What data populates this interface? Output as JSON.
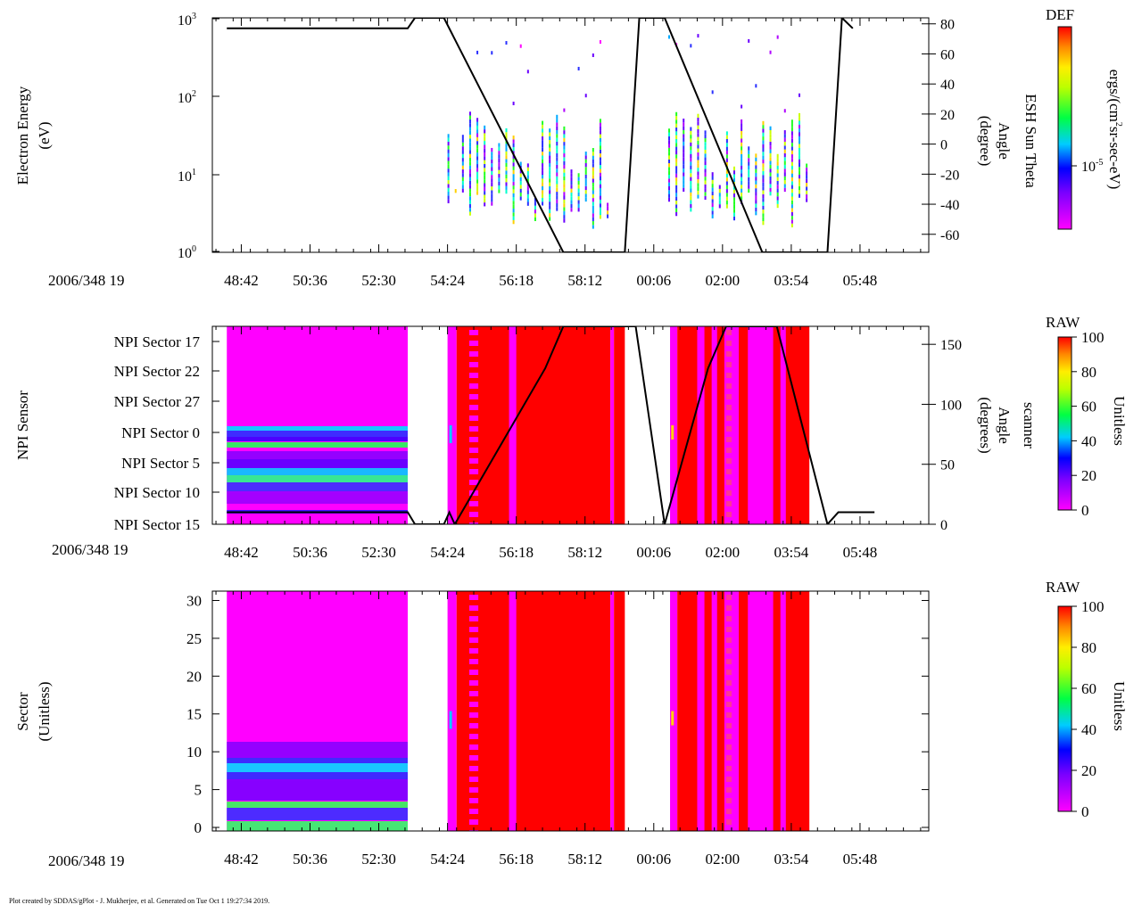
{
  "footer": "Plot created by SDDAS/gPlot - J. Mukherjee, et al.  Generated on Tue Oct 1 19:27:34 2019.",
  "time_ticks": [
    "48:42",
    "50:36",
    "52:30",
    "54:24",
    "56:18",
    "58:12",
    "00:06",
    "02:00",
    "03:54",
    "05:48"
  ],
  "date_label": "2006/348 19",
  "colors": {
    "low": "#ff00ff",
    "high": "#ff0000",
    "fill_bg": "#ffffff",
    "axis": "#000000"
  },
  "chart_data": [
    {
      "type": "heatmap",
      "title": "Electron Energy",
      "ylabel_lines": [
        "Electron Energy",
        "(eV)"
      ],
      "yscale": "log",
      "ylim": [
        1,
        1000
      ],
      "y_ticks": [
        {
          "base": "10",
          "exp": "0"
        },
        {
          "base": "10",
          "exp": "1"
        },
        {
          "base": "10",
          "exp": "2"
        },
        {
          "base": "10",
          "exp": "3"
        }
      ],
      "right_axis": {
        "label_lines": [
          "ESH Sun Theta",
          "Angle",
          "(degree)"
        ],
        "ticks": [
          "80",
          "60",
          "40",
          "20",
          "0",
          "-20",
          "-40",
          "-60"
        ],
        "ylim": [
          -72,
          84
        ],
        "line_name": "ESH Sun Theta",
        "line_points": [
          [
            48.3,
            77
          ],
          [
            53.3,
            77
          ],
          [
            53.5,
            84
          ],
          [
            54.3,
            84
          ],
          [
            57.6,
            -72
          ],
          [
            59.3,
            -72
          ],
          [
            59.7,
            84
          ],
          [
            60.4,
            84
          ],
          [
            63.1,
            -72
          ],
          [
            64.9,
            -72
          ],
          [
            65.3,
            84
          ],
          [
            65.6,
            77
          ]
        ]
      },
      "colorbar": {
        "label": "DEF",
        "unit_parts": [
          "ergs/(cm",
          "2",
          "sr-sec-eV)"
        ],
        "tick_base": "10",
        "tick_exp": "-5"
      },
      "data_segments": [
        [
          54.4,
          58.9
        ],
        [
          60.5,
          64.4
        ]
      ]
    },
    {
      "type": "heatmap",
      "title": "NPI Sensor",
      "ylabel_lines": [
        "NPI Sensor"
      ],
      "y_ticks": [
        "NPI Sector 17",
        "NPI Sector 22",
        "NPI Sector 27",
        "NPI Sector 0",
        "NPI Sector 5",
        "NPI Sector 10",
        "NPI Sector 15"
      ],
      "right_axis": {
        "label_lines": [
          "scanner",
          "Angle",
          "(degrees)"
        ],
        "ticks": [
          "150",
          "100",
          "50",
          "0"
        ],
        "ylim": [
          0,
          165
        ],
        "line_name": "scanner angle",
        "line_points": [
          [
            48.3,
            10
          ],
          [
            53.3,
            10
          ],
          [
            53.5,
            0
          ],
          [
            54.3,
            0
          ],
          [
            54.45,
            10
          ],
          [
            54.6,
            0
          ],
          [
            57.1,
            130
          ],
          [
            57.6,
            165
          ],
          [
            59.6,
            165
          ],
          [
            60.4,
            0
          ],
          [
            61.6,
            130
          ],
          [
            62.1,
            165
          ],
          [
            63.5,
            165
          ],
          [
            64.9,
            0
          ],
          [
            65.2,
            10
          ],
          [
            66.2,
            10
          ]
        ]
      },
      "colorbar": {
        "label": "RAW",
        "unit": "Unitless",
        "ticks": [
          "100",
          "80",
          "60",
          "40",
          "20",
          "0"
        ],
        "range": [
          0,
          100
        ]
      },
      "data_segments": [
        [
          48.3,
          53.3
        ],
        [
          54.4,
          59.3
        ],
        [
          60.6,
          64.4
        ]
      ]
    },
    {
      "type": "heatmap",
      "title": "Sector",
      "ylabel_lines": [
        "Sector",
        "(Unitless)"
      ],
      "ylim": [
        0,
        31
      ],
      "y_ticks": [
        "30",
        "25",
        "20",
        "15",
        "10",
        "5",
        "0"
      ],
      "colorbar": {
        "label": "RAW",
        "unit": "Unitless",
        "ticks": [
          "100",
          "80",
          "60",
          "40",
          "20",
          "0"
        ],
        "range": [
          0,
          100
        ]
      },
      "data_segments": [
        [
          48.3,
          53.3
        ],
        [
          54.4,
          59.3
        ],
        [
          60.6,
          64.4
        ]
      ]
    }
  ]
}
